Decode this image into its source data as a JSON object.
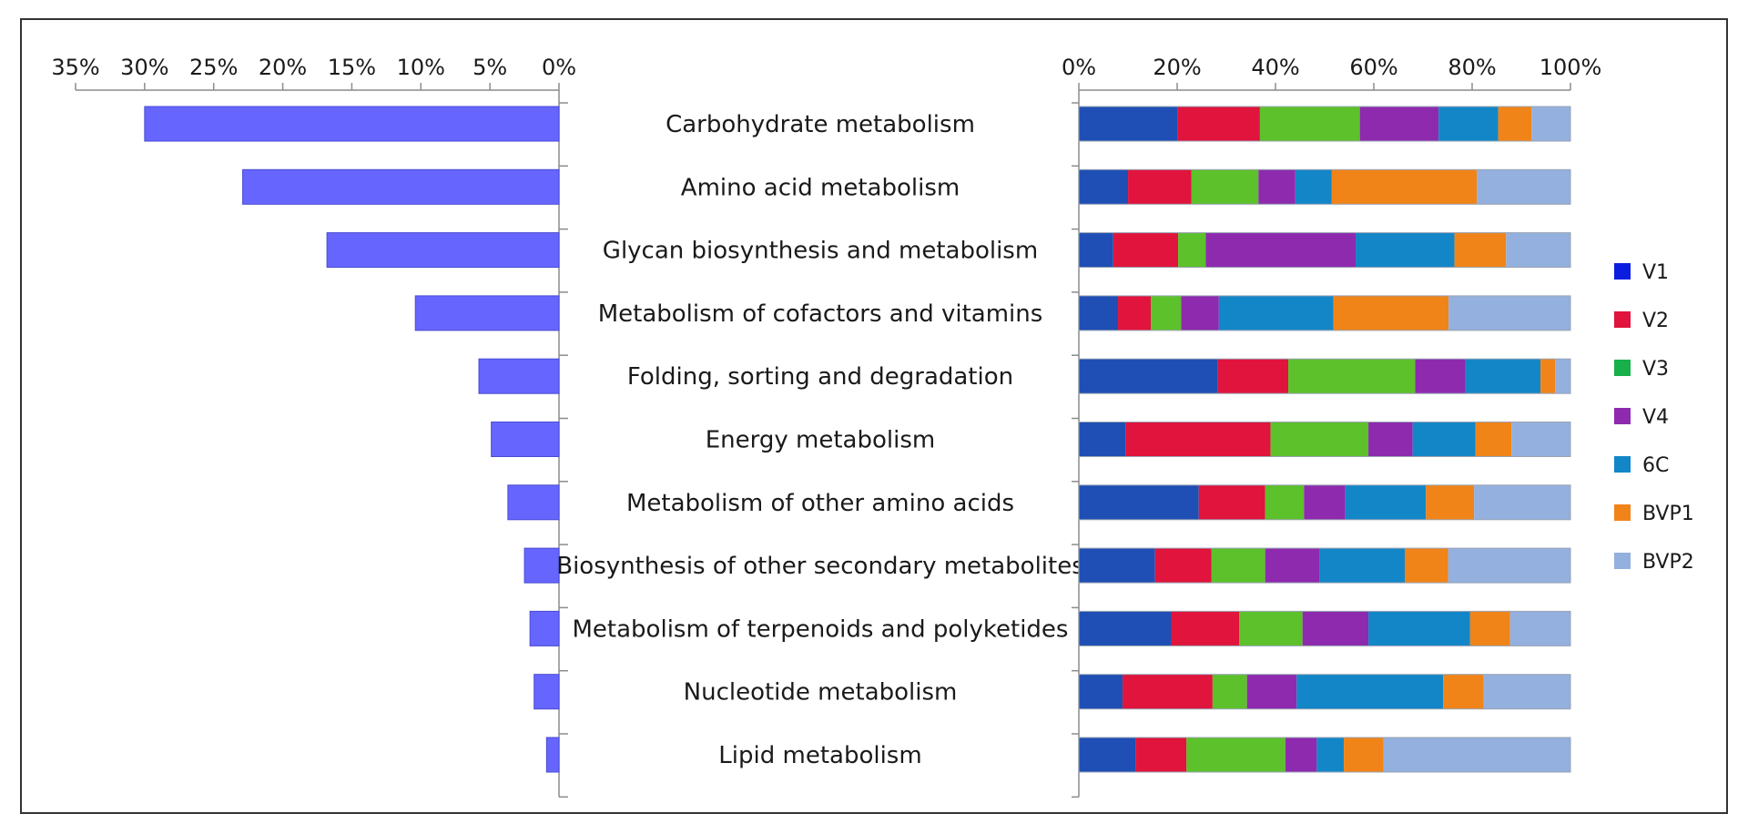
{
  "chart_data": [
    {
      "type": "bar",
      "orientation": "horizontal",
      "x_axis_reversed": true,
      "categories": [
        "Carbohydrate metabolism",
        "Amino acid metabolism",
        "Glycan biosynthesis and metabolism",
        "Metabolism of cofactors and vitamins",
        "Folding, sorting and degradation",
        "Energy metabolism",
        "Metabolism of other amino acids",
        "Biosynthesis of other secondary metabolites",
        "Metabolism of terpenoids and polyketides",
        "Nucleotide metabolism",
        "Lipid metabolism"
      ],
      "values": [
        30.0,
        22.9,
        16.8,
        10.4,
        5.8,
        4.9,
        3.7,
        2.5,
        2.1,
        1.8,
        0.9
      ],
      "xlim": [
        0,
        35
      ],
      "ticks": [
        "35%",
        "30%",
        "25%",
        "20%",
        "15%",
        "10%",
        "5%",
        "0%"
      ],
      "tick_values": [
        35,
        30,
        25,
        20,
        15,
        10,
        5,
        0
      ],
      "bar_color": "#6666ff",
      "grid": false,
      "title": "",
      "xlabel": "",
      "ylabel": ""
    },
    {
      "type": "bar",
      "orientation": "horizontal",
      "stacked": true,
      "percent_stacked": true,
      "categories": [
        "Carbohydrate metabolism",
        "Amino acid metabolism",
        "Glycan biosynthesis and metabolism",
        "Metabolism of cofactors and vitamins",
        "Folding, sorting and degradation",
        "Energy metabolism",
        "Metabolism of other amino acids",
        "Biosynthesis of other secondary metabolites",
        "Metabolism of terpenoids and polyketides",
        "Nucleotide metabolism",
        "Lipid metabolism"
      ],
      "xlim": [
        0,
        100
      ],
      "ticks": [
        "0%",
        "20%",
        "40%",
        "60%",
        "80%",
        "100%"
      ],
      "tick_values": [
        0,
        20,
        40,
        60,
        80,
        100
      ],
      "legend_position": "right",
      "grid": false,
      "title": "",
      "xlabel": "",
      "ylabel": "",
      "series": [
        {
          "name": "V1",
          "color": "#1f4fb4",
          "legend_color": "#0b1ee0",
          "values": [
            20.0,
            10.0,
            7.0,
            8.0,
            28.3,
            9.5,
            24.4,
            15.5,
            18.8,
            8.9,
            11.5
          ]
        },
        {
          "name": "V2",
          "color": "#e0143c",
          "legend_color": "#e0143c",
          "values": [
            16.8,
            12.9,
            13.2,
            6.7,
            14.3,
            29.5,
            13.5,
            11.5,
            13.8,
            18.3,
            10.4
          ]
        },
        {
          "name": "V3",
          "color": "#5cc12a",
          "legend_color": "#17b04a",
          "values": [
            20.3,
            13.6,
            5.6,
            6.2,
            25.8,
            19.9,
            7.9,
            10.9,
            12.9,
            7.0,
            20.1
          ]
        },
        {
          "name": "V4",
          "color": "#8e2aae",
          "legend_color": "#8e2aae",
          "values": [
            16.0,
            7.5,
            30.5,
            7.7,
            10.2,
            9.0,
            8.4,
            11.0,
            13.4,
            10.1,
            6.4
          ]
        },
        {
          "name": "6C",
          "color": "#1386c8",
          "legend_color": "#1386c8",
          "values": [
            12.1,
            7.4,
            20.1,
            23.4,
            15.3,
            12.8,
            16.4,
            17.4,
            20.7,
            29.8,
            5.5
          ]
        },
        {
          "name": "BVP1",
          "color": "#f08418",
          "legend_color": "#f08418",
          "values": [
            6.8,
            29.5,
            10.5,
            23.5,
            3.0,
            7.3,
            9.8,
            8.8,
            8.1,
            8.2,
            8.1
          ]
        },
        {
          "name": "BVP2",
          "color": "#94b0de",
          "legend_color": "#94b0de",
          "values": [
            7.9,
            19.0,
            13.1,
            24.9,
            3.1,
            12.0,
            19.6,
            24.9,
            12.3,
            17.7,
            38.0
          ]
        }
      ]
    }
  ]
}
